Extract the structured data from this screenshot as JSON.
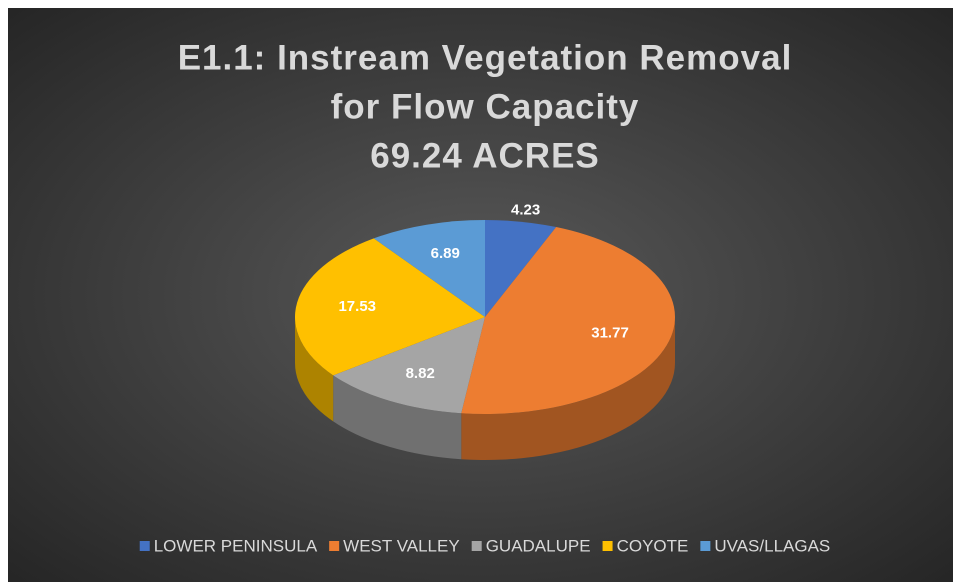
{
  "chart_data": {
    "type": "pie3d",
    "title": [
      "E1.1: Instream  Vegetation  Removal",
      "for Flow Capacity",
      "69.24 ACRES"
    ],
    "categories": [
      "LOWER PENINSULA",
      "WEST VALLEY",
      "GUADALUPE",
      "COYOTE",
      "UVAS/LLAGAS"
    ],
    "values": [
      4.23,
      31.77,
      8.82,
      17.53,
      6.89
    ],
    "colors": [
      "#4472c4",
      "#ed7d31",
      "#a5a5a5",
      "#ffc000",
      "#5b9bd5"
    ],
    "legend": "bottom"
  }
}
